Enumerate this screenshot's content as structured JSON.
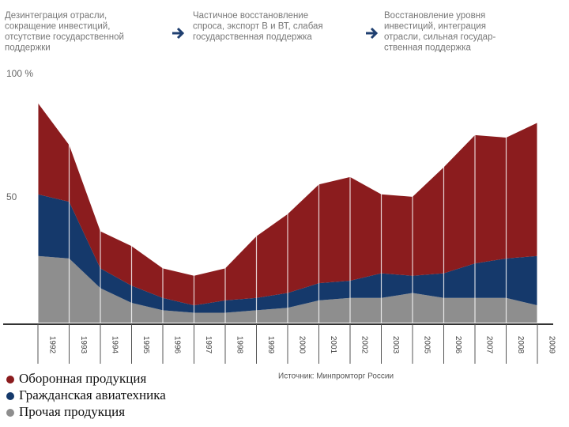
{
  "chart_data": {
    "type": "stacked_area",
    "phases": [
      [
        "Дезинтеграция отрасли,",
        "сокращение инвестиций,",
        "отсутствие государственной",
        "поддержки"
      ],
      [
        "Частичное восстановление",
        "спроса, экспорт В и ВТ, слабая",
        "государственная поддержка"
      ],
      [
        "Восстановление уровня",
        "инвестиций, интеграция",
        "отрасли, сильная государ-",
        "ственная поддержка"
      ]
    ],
    "categories": [
      "1992",
      "1993",
      "1994",
      "1995",
      "1996",
      "1997",
      "1998",
      "1999",
      "2000",
      "2001",
      "2002",
      "2003",
      "2005",
      "2006",
      "2007",
      "2008",
      "2009"
    ],
    "series": [
      {
        "name": "Оборонная продукция",
        "color": "#8b1c1e",
        "values": [
          37,
          23,
          15,
          16,
          12,
          12,
          13,
          25,
          32,
          40,
          42,
          32,
          32,
          43,
          52,
          49,
          54
        ]
      },
      {
        "name": "Гражданская авиатехника",
        "color": "#15396b",
        "values": [
          25,
          23,
          8,
          7,
          5,
          3,
          5,
          5,
          6,
          7,
          7,
          10,
          7,
          10,
          14,
          16,
          20
        ]
      },
      {
        "name": "Прочая продукция",
        "color": "#8e8e8e",
        "values": [
          27,
          26,
          14,
          8,
          5,
          4,
          4,
          5,
          6,
          9,
          10,
          10,
          12,
          10,
          10,
          10,
          7
        ]
      }
    ],
    "ylim": [
      0,
      100
    ],
    "yticks": [
      50,
      {
        "value": 100,
        "label": "100 %"
      }
    ],
    "source": "Источник: Минпромторг России"
  }
}
